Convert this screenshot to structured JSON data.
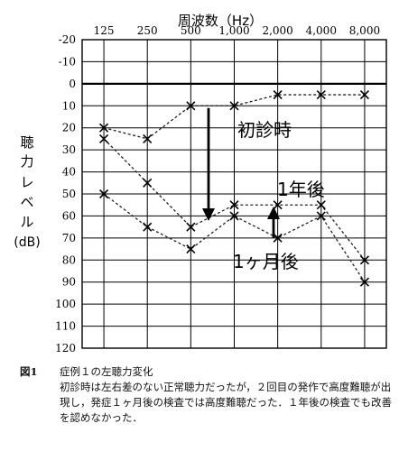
{
  "chart_data": {
    "type": "line",
    "title": "",
    "xlabel": "周波数（Hz）",
    "ylabel_chars": [
      "聴",
      "力",
      "レ",
      "ベ",
      "ル"
    ],
    "ylabel_unit": "(dB)",
    "categories": [
      "125",
      "250",
      "500",
      "1,000",
      "2,000",
      "4,000",
      "8,000"
    ],
    "yticks": [
      -20,
      -10,
      0,
      10,
      20,
      30,
      40,
      50,
      60,
      70,
      80,
      90,
      100,
      110,
      120
    ],
    "ylim": [
      -20,
      120
    ],
    "y_inverted": true,
    "grid": true,
    "series": [
      {
        "label": "初診時",
        "marker": "x",
        "values": [
          20,
          25,
          10,
          10,
          5,
          5,
          5
        ]
      },
      {
        "label": "1ヶ月後",
        "marker": "x",
        "values": [
          50,
          65,
          75,
          60,
          70,
          60,
          90
        ]
      },
      {
        "label": "1年後",
        "marker": "x",
        "values": [
          25,
          45,
          65,
          55,
          55,
          55,
          80
        ]
      }
    ],
    "annotations": [
      "初診時",
      "1年後",
      "1ヶ月後"
    ]
  },
  "caption": {
    "number": "図1",
    "title": "症例１の左聴力変化",
    "body": "初診時は左右差のない正常聴力だったが，２回目の発作で高度難聴が出現し，発症１ヶ月後の検査では高度難聴だった．１年後の検査でも改善を認めなかった．"
  }
}
